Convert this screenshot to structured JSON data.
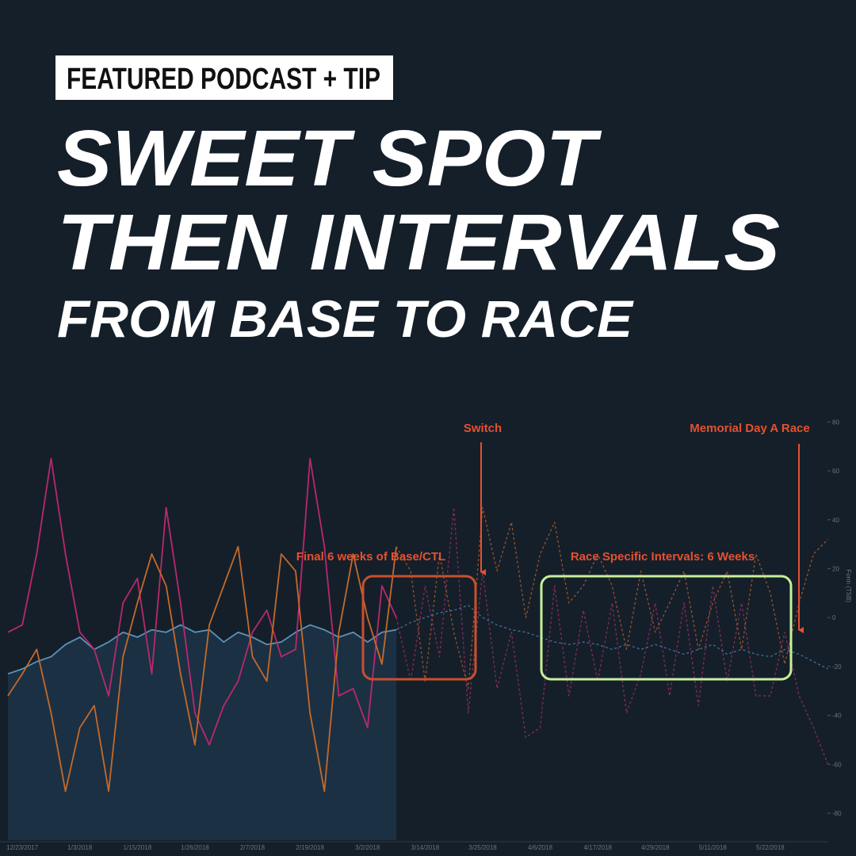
{
  "header": {
    "tag": "FEATURED PODCAST + TIP",
    "title_lines": [
      "SWEET SPOT",
      "THEN INTERVALS"
    ],
    "subtitle": "FROM BASE TO RACE"
  },
  "chart_data": {
    "type": "line",
    "categories": [
      null,
      "12/23/2017",
      null,
      null,
      null,
      "1/3/2018",
      null,
      null,
      null,
      "1/15/2018",
      null,
      null,
      null,
      "1/26/2018",
      null,
      null,
      null,
      "2/7/2018",
      null,
      null,
      null,
      "2/19/2018",
      null,
      null,
      null,
      "3/2/2018",
      null,
      null,
      null,
      "3/14/2018",
      null,
      null,
      null,
      "3/25/2018",
      null,
      null,
      null,
      "4/6/2018",
      null,
      null,
      null,
      "4/17/2018",
      null,
      null,
      null,
      "4/29/2018",
      null,
      null,
      null,
      "5/11/2018",
      null,
      null,
      null,
      "5/22/2018",
      null,
      null,
      null,
      null
    ],
    "y_label": "Form (TSB)",
    "ylim": [
      -91,
      84
    ],
    "yticks": [
      80,
      60,
      40,
      20,
      0,
      -20,
      -40,
      -60,
      -80
    ],
    "series": [
      {
        "color": "#2f5f86",
        "line_color": "#5b93b8",
        "line_style": "solid",
        "fill": true,
        "values": [
          -23,
          -21,
          -18,
          -16,
          -11,
          -8,
          -13,
          -10,
          -6,
          -8,
          -5,
          -6,
          -3,
          -6,
          -5,
          -10,
          -6,
          -8,
          -11,
          -10,
          -6,
          -3,
          -5,
          -8,
          -6,
          -10,
          -6,
          -5,
          null,
          null,
          null,
          null,
          null,
          null,
          null,
          null,
          null,
          null,
          null,
          null,
          null,
          null,
          null,
          null,
          null,
          null,
          null,
          null,
          null,
          null,
          null,
          null,
          null,
          null,
          null,
          null,
          null,
          null
        ]
      },
      {
        "color": "#b8296e",
        "line_style": "solid",
        "values": [
          -6,
          -3,
          26,
          65,
          26,
          -6,
          -13,
          -32,
          6,
          16,
          -23,
          45,
          6,
          -39,
          -52,
          -36,
          -26,
          -6,
          3,
          -16,
          -13,
          65,
          29,
          -32,
          -29,
          -45,
          13,
          0,
          null,
          null,
          null,
          null,
          null,
          null,
          null,
          null,
          null,
          null,
          null,
          null,
          null,
          null,
          null,
          null,
          null,
          null,
          null,
          null,
          null,
          null,
          null,
          null,
          null,
          null,
          null,
          null,
          null,
          null
        ]
      },
      {
        "color": "#c46a2a",
        "line_style": "solid",
        "values": [
          -32,
          -23,
          -13,
          -39,
          -71,
          -45,
          -36,
          -71,
          -16,
          6,
          26,
          13,
          -23,
          -52,
          -3,
          13,
          29,
          -16,
          -26,
          26,
          19,
          -39,
          -71,
          -6,
          26,
          0,
          -19,
          29,
          null,
          null,
          null,
          null,
          null,
          null,
          null,
          null,
          null,
          null,
          null,
          null,
          null,
          null,
          null,
          null,
          null,
          null,
          null,
          null,
          null,
          null,
          null,
          null,
          null,
          null,
          null,
          null,
          null,
          null
        ]
      },
      {
        "color": "#8a2a5c",
        "line_style": "dashed",
        "values": [
          null,
          null,
          null,
          null,
          null,
          null,
          null,
          null,
          null,
          null,
          null,
          null,
          null,
          null,
          null,
          null,
          null,
          null,
          null,
          null,
          null,
          null,
          null,
          null,
          null,
          null,
          null,
          0,
          -26,
          13,
          -16,
          45,
          -39,
          19,
          -29,
          -6,
          -49,
          -45,
          13,
          -32,
          3,
          -26,
          6,
          -39,
          -23,
          6,
          -32,
          6,
          -36,
          13,
          -26,
          6,
          -32,
          -32,
          -6,
          -32,
          -45,
          -60
        ]
      },
      {
        "color": "#9a5427",
        "line_style": "dashed",
        "values": [
          null,
          null,
          null,
          null,
          null,
          null,
          null,
          null,
          null,
          null,
          null,
          null,
          null,
          null,
          null,
          null,
          null,
          null,
          null,
          null,
          null,
          null,
          null,
          null,
          null,
          null,
          null,
          29,
          19,
          -26,
          26,
          -6,
          -29,
          45,
          19,
          39,
          0,
          26,
          39,
          6,
          13,
          26,
          13,
          -13,
          19,
          -6,
          6,
          19,
          -13,
          6,
          19,
          -13,
          26,
          10,
          -19,
          6,
          26,
          32
        ]
      },
      {
        "color": "#3f7396",
        "line_style": "dashed",
        "values": [
          null,
          null,
          null,
          null,
          null,
          null,
          null,
          null,
          null,
          null,
          null,
          null,
          null,
          null,
          null,
          null,
          null,
          null,
          null,
          null,
          null,
          null,
          null,
          null,
          null,
          null,
          null,
          -5,
          -2,
          0,
          2,
          3,
          5,
          0,
          -3,
          -5,
          -6,
          -8,
          -10,
          -11,
          -10,
          -11,
          -13,
          -11,
          -13,
          -11,
          -13,
          -15,
          -13,
          -11,
          -15,
          -13,
          -15,
          -16,
          -13,
          -15,
          -18,
          -21
        ]
      }
    ],
    "annotations": [
      "Switch",
      "Memorial Day A Race",
      "Final 6 weeks of Base/CTL",
      "Race Specific Intervals: 6 Weeks"
    ]
  }
}
